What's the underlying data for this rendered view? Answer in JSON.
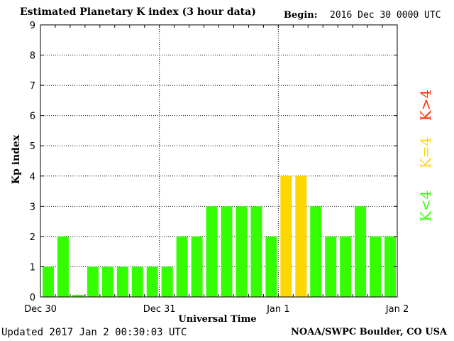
{
  "header": {
    "title": "Estimated Planetary K index (3 hour data)",
    "begin_label": "Begin:",
    "begin_value": "2016 Dec 30 0000 UTC"
  },
  "footer": {
    "updated": "Updated 2017 Jan  2 00:30:03 UTC",
    "source": "NOAA/SWPC Boulder, CO USA"
  },
  "legend": [
    {
      "label": "K<4",
      "color": "#33ff00"
    },
    {
      "label": "K=4",
      "color": "#ffd700"
    },
    {
      "label": "K>4",
      "color": "#ff2a00"
    }
  ],
  "chart_data": {
    "type": "bar",
    "title": "Estimated Planetary K index (3 hour data)",
    "xlabel": "Universal Time",
    "ylabel": "Kp index",
    "ylim": [
      0,
      9
    ],
    "yticks": [
      0,
      1,
      2,
      3,
      4,
      5,
      6,
      7,
      8,
      9
    ],
    "x_tick_labels": [
      "Dec 30",
      "Dec 31",
      "Jan 1",
      "Jan 2"
    ],
    "bar_interval_hours": 3,
    "values": [
      1,
      2,
      0.07,
      1,
      1,
      1,
      1,
      1,
      1,
      2,
      2,
      3,
      3,
      3,
      3,
      2,
      4,
      4,
      3,
      2,
      2,
      3,
      2,
      2
    ],
    "colors": {
      "below_4": "#33ff00",
      "equal_4": "#ffd700",
      "above_4": "#ff2a00"
    },
    "grid": true,
    "legend_position": "right"
  }
}
